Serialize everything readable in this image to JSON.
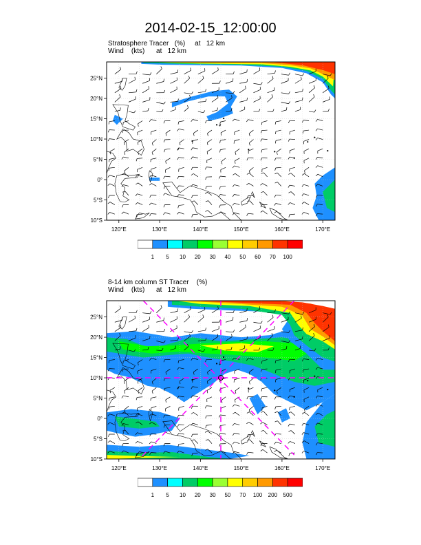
{
  "title": "2014-02-15_12:00:00",
  "axes": {
    "lat_labels": [
      "25°N",
      "20°N",
      "15°N",
      "10°N",
      "5°N",
      "0°",
      "5°S",
      "10°S"
    ],
    "lat_values": [
      25,
      20,
      15,
      10,
      5,
      0,
      -5,
      -10
    ],
    "lon_labels": [
      "120°E",
      "130°E",
      "140°E",
      "150°E",
      "160°E",
      "170°E"
    ],
    "lon_values": [
      120,
      130,
      140,
      150,
      160,
      170
    ],
    "lon_range": [
      117,
      173
    ],
    "lat_range": [
      -10,
      29
    ]
  },
  "panels": [
    {
      "id": "stratosphere-tracer",
      "line1": "Stratosphere Tracer   (%)     at   12 km",
      "line2": "Wind    (kts)      at   12 km",
      "levels": [
        "1",
        "5",
        "10",
        "20",
        "30",
        "40",
        "50",
        "60",
        "70",
        "100"
      ],
      "colors": [
        "#ffffff",
        "#1e90ff",
        "#00ffff",
        "#00cc66",
        "#00ff00",
        "#99ff33",
        "#ffff00",
        "#ffcc00",
        "#ff9900",
        "#ff3300",
        "#ff0000"
      ]
    },
    {
      "id": "column-st-tracer",
      "line1": "8-14 km column ST Tracer    (%)",
      "line2": "Wind    (kts)      at   12 km",
      "levels": [
        "1",
        "5",
        "10",
        "20",
        "30",
        "50",
        "70",
        "100",
        "200",
        "500"
      ],
      "colors": [
        "#ffffff",
        "#1e90ff",
        "#00ffff",
        "#00cc66",
        "#00ff00",
        "#99ff33",
        "#ffff00",
        "#ffcc00",
        "#ff9900",
        "#ff3300",
        "#ff0000"
      ],
      "marker_center": {
        "lon": 145,
        "lat": 10
      }
    }
  ],
  "colors": {
    "frame": "#000000",
    "grid": "#cccccc",
    "coast": "#000000",
    "guide": "#ff00ff"
  }
}
